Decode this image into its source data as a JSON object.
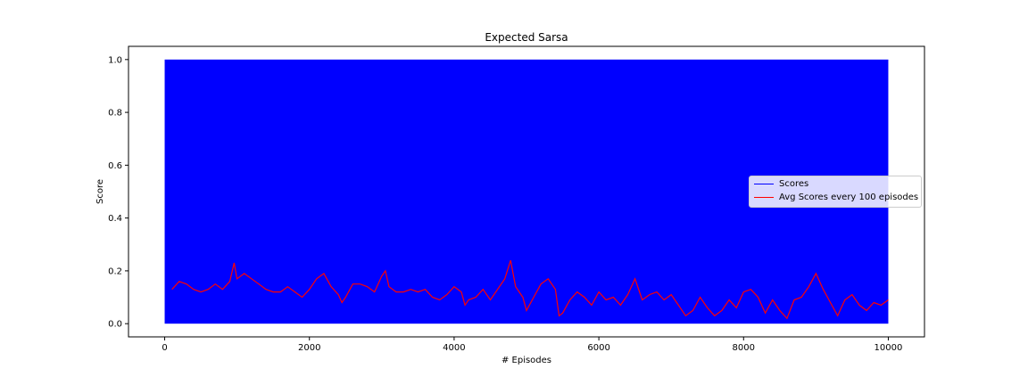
{
  "chart_data": {
    "type": "line",
    "title": "Expected Sarsa",
    "xlabel": "# Episodes",
    "ylabel": "Score",
    "xlim": [
      -500,
      10500
    ],
    "ylim": [
      -0.05,
      1.05
    ],
    "x_ticks": [
      0,
      2000,
      4000,
      6000,
      8000,
      10000
    ],
    "x_tick_labels": [
      "0",
      "2000",
      "4000",
      "6000",
      "8000",
      "10000"
    ],
    "y_ticks": [
      0.0,
      0.2,
      0.4,
      0.6,
      0.8,
      1.0
    ],
    "y_tick_labels": [
      "0.0",
      "0.2",
      "0.4",
      "0.6",
      "0.8",
      "1.0"
    ],
    "grid": false,
    "legend_position": "center-right",
    "series": [
      {
        "name": "Scores",
        "color": "#0000ff",
        "x_range": [
          0,
          10000
        ],
        "values_range": [
          0,
          1
        ],
        "description": "per-episode binary score (0 or 1), dense vertical lines"
      },
      {
        "name": "Avg Scores every 100 episodes",
        "color": "#ff0000",
        "x": [
          100,
          200,
          300,
          400,
          500,
          600,
          700,
          800,
          900,
          960,
          1000,
          1100,
          1200,
          1300,
          1400,
          1500,
          1600,
          1700,
          1800,
          1900,
          2000,
          2100,
          2200,
          2300,
          2400,
          2450,
          2500,
          2600,
          2700,
          2800,
          2900,
          3000,
          3050,
          3100,
          3200,
          3300,
          3400,
          3500,
          3600,
          3700,
          3800,
          3900,
          4000,
          4100,
          4150,
          4200,
          4300,
          4400,
          4500,
          4600,
          4700,
          4780,
          4850,
          4950,
          5000,
          5100,
          5200,
          5300,
          5400,
          5450,
          5500,
          5600,
          5700,
          5800,
          5900,
          6000,
          6100,
          6200,
          6300,
          6400,
          6500,
          6600,
          6700,
          6800,
          6900,
          7000,
          7100,
          7200,
          7300,
          7400,
          7500,
          7600,
          7700,
          7800,
          7900,
          8000,
          8100,
          8200,
          8300,
          8400,
          8500,
          8600,
          8700,
          8800,
          8900,
          9000,
          9100,
          9200,
          9300,
          9400,
          9500,
          9600,
          9700,
          9800,
          9900,
          10000
        ],
        "values": [
          0.13,
          0.16,
          0.15,
          0.13,
          0.12,
          0.13,
          0.15,
          0.13,
          0.16,
          0.23,
          0.17,
          0.19,
          0.17,
          0.15,
          0.13,
          0.12,
          0.12,
          0.14,
          0.12,
          0.1,
          0.13,
          0.17,
          0.19,
          0.14,
          0.11,
          0.08,
          0.1,
          0.15,
          0.15,
          0.14,
          0.12,
          0.18,
          0.2,
          0.14,
          0.12,
          0.12,
          0.13,
          0.12,
          0.13,
          0.1,
          0.09,
          0.11,
          0.14,
          0.12,
          0.07,
          0.09,
          0.1,
          0.13,
          0.09,
          0.13,
          0.17,
          0.24,
          0.14,
          0.1,
          0.05,
          0.1,
          0.15,
          0.17,
          0.13,
          0.03,
          0.04,
          0.09,
          0.12,
          0.1,
          0.07,
          0.12,
          0.09,
          0.1,
          0.07,
          0.11,
          0.17,
          0.09,
          0.11,
          0.12,
          0.09,
          0.11,
          0.07,
          0.03,
          0.05,
          0.1,
          0.06,
          0.03,
          0.05,
          0.09,
          0.06,
          0.12,
          0.13,
          0.1,
          0.04,
          0.09,
          0.05,
          0.02,
          0.09,
          0.1,
          0.14,
          0.19,
          0.13,
          0.08,
          0.03,
          0.09,
          0.11,
          0.07,
          0.05,
          0.08,
          0.07,
          0.09
        ]
      }
    ]
  }
}
